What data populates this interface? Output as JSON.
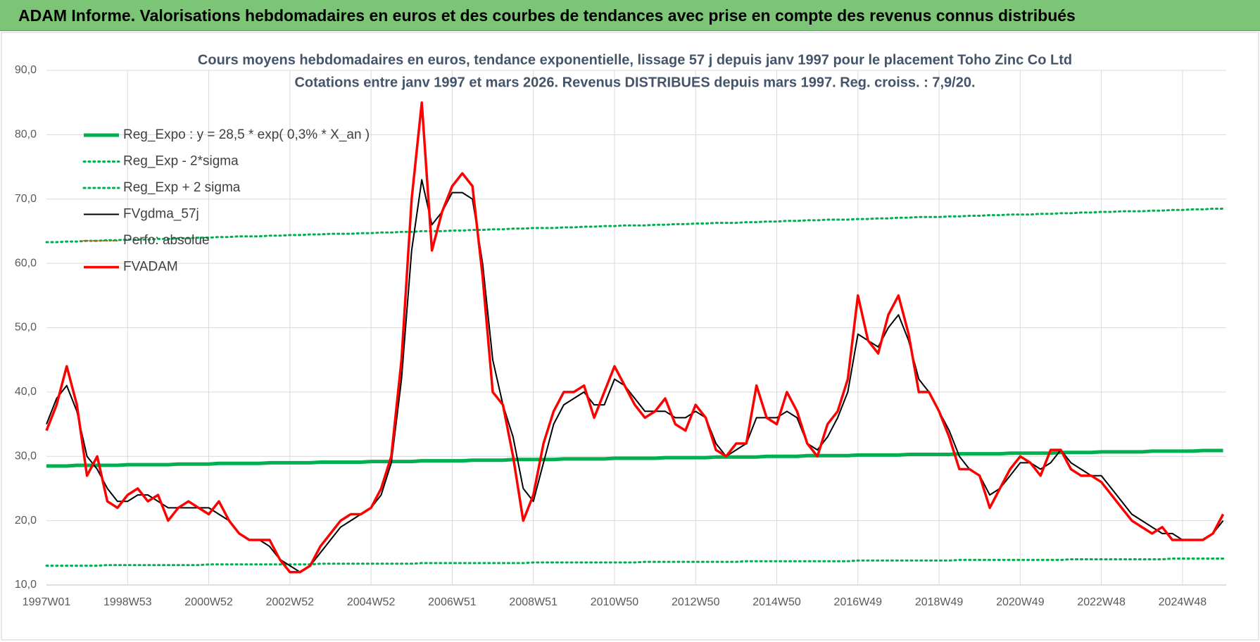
{
  "header": {
    "title": "ADAM Informe. Valorisations hebdomadaires en euros et des courbes de tendances avec prise en compte des revenus connus distribués"
  },
  "chart_data": {
    "type": "line",
    "title": "Cours moyens hebdomadaires en euros, tendance exponentielle, lissage 57 j depuis janv 1997 pour le placement Toho Zinc Co Ltd",
    "subtitle": "Cotations entre janv 1997 et mars 2026. Revenus DISTRIBUES depuis mars 1997. Reg. croiss. : 7,9/20.",
    "grid": true,
    "legend": "upper-left",
    "ylim": [
      10,
      90
    ],
    "yticks": [
      {
        "value": 10,
        "label": "10,0"
      },
      {
        "value": 20,
        "label": "20,0"
      },
      {
        "value": 30,
        "label": "30,0"
      },
      {
        "value": 40,
        "label": "40,0"
      },
      {
        "value": 50,
        "label": "50,0"
      },
      {
        "value": 60,
        "label": "60,0"
      },
      {
        "value": 70,
        "label": "70,0"
      },
      {
        "value": 80,
        "label": "80,0"
      },
      {
        "value": 90,
        "label": "90,0"
      }
    ],
    "categories": [
      "1997W01",
      null,
      null,
      null,
      null,
      null,
      null,
      null,
      "1998W53",
      null,
      null,
      null,
      null,
      null,
      null,
      null,
      "2000W52",
      null,
      null,
      null,
      null,
      null,
      null,
      null,
      "2002W52",
      null,
      null,
      null,
      null,
      null,
      null,
      null,
      "2004W52",
      null,
      null,
      null,
      null,
      null,
      null,
      null,
      "2006W51",
      null,
      null,
      null,
      null,
      null,
      null,
      null,
      "2008W51",
      null,
      null,
      null,
      null,
      null,
      null,
      null,
      "2010W50",
      null,
      null,
      null,
      null,
      null,
      null,
      null,
      "2012W50",
      null,
      null,
      null,
      null,
      null,
      null,
      null,
      "2014W50",
      null,
      null,
      null,
      null,
      null,
      null,
      null,
      "2016W49",
      null,
      null,
      null,
      null,
      null,
      null,
      null,
      "2018W49",
      null,
      null,
      null,
      null,
      null,
      null,
      null,
      "2020W49",
      null,
      null,
      null,
      null,
      null,
      null,
      null,
      "2022W48",
      null,
      null,
      null,
      null,
      null,
      null,
      null,
      "2024W48",
      null,
      null,
      null,
      null
    ],
    "series": [
      {
        "name": "Reg_Expo : y = 28,5 * exp( 0,3% *  X_an )",
        "color": "#00b050",
        "dash": "solid",
        "width": 5,
        "values": [
          28.5,
          28.5,
          28.5,
          28.6,
          28.6,
          28.6,
          28.6,
          28.6,
          28.7,
          28.7,
          28.7,
          28.7,
          28.7,
          28.8,
          28.8,
          28.8,
          28.8,
          28.9,
          28.9,
          28.9,
          28.9,
          28.9,
          29.0,
          29.0,
          29.0,
          29.0,
          29.0,
          29.1,
          29.1,
          29.1,
          29.1,
          29.1,
          29.2,
          29.2,
          29.2,
          29.2,
          29.2,
          29.3,
          29.3,
          29.3,
          29.3,
          29.3,
          29.4,
          29.4,
          29.4,
          29.4,
          29.5,
          29.5,
          29.5,
          29.5,
          29.5,
          29.6,
          29.6,
          29.6,
          29.6,
          29.6,
          29.7,
          29.7,
          29.7,
          29.7,
          29.7,
          29.8,
          29.8,
          29.8,
          29.8,
          29.8,
          29.9,
          29.9,
          29.9,
          29.9,
          29.9,
          30.0,
          30.0,
          30.0,
          30.0,
          30.1,
          30.1,
          30.1,
          30.1,
          30.1,
          30.2,
          30.2,
          30.2,
          30.2,
          30.2,
          30.3,
          30.3,
          30.3,
          30.3,
          30.3,
          30.4,
          30.4,
          30.4,
          30.4,
          30.4,
          30.5,
          30.5,
          30.5,
          30.5,
          30.5,
          30.6,
          30.6,
          30.6,
          30.6,
          30.7,
          30.7,
          30.7,
          30.7,
          30.7,
          30.8,
          30.8,
          30.8,
          30.8,
          30.8,
          30.9,
          30.9,
          30.9
        ]
      },
      {
        "name": "Reg_Exp - 2*sigma",
        "color": "#00b050",
        "dash": "dotted",
        "width": 3,
        "values": [
          13.0,
          13.0,
          13.0,
          13.0,
          13.0,
          13.0,
          13.1,
          13.1,
          13.1,
          13.1,
          13.1,
          13.1,
          13.1,
          13.1,
          13.1,
          13.1,
          13.2,
          13.2,
          13.2,
          13.2,
          13.2,
          13.2,
          13.2,
          13.2,
          13.2,
          13.2,
          13.2,
          13.3,
          13.3,
          13.3,
          13.3,
          13.3,
          13.3,
          13.3,
          13.3,
          13.3,
          13.3,
          13.4,
          13.4,
          13.4,
          13.4,
          13.4,
          13.4,
          13.4,
          13.4,
          13.4,
          13.4,
          13.4,
          13.5,
          13.5,
          13.5,
          13.5,
          13.5,
          13.5,
          13.5,
          13.5,
          13.5,
          13.5,
          13.5,
          13.6,
          13.6,
          13.6,
          13.6,
          13.6,
          13.6,
          13.6,
          13.6,
          13.6,
          13.6,
          13.7,
          13.7,
          13.7,
          13.7,
          13.7,
          13.7,
          13.7,
          13.7,
          13.7,
          13.7,
          13.7,
          13.8,
          13.8,
          13.8,
          13.8,
          13.8,
          13.8,
          13.8,
          13.8,
          13.8,
          13.8,
          13.9,
          13.9,
          13.9,
          13.9,
          13.9,
          13.9,
          13.9,
          13.9,
          13.9,
          13.9,
          13.9,
          14.0,
          14.0,
          14.0,
          14.0,
          14.0,
          14.0,
          14.0,
          14.0,
          14.0,
          14.0,
          14.1,
          14.1,
          14.1,
          14.1,
          14.1,
          14.1
        ]
      },
      {
        "name": "Reg_Exp + 2 sigma",
        "color": "#00b050",
        "dash": "dotted",
        "width": 3,
        "values": [
          63.3,
          63.3,
          63.4,
          63.4,
          63.5,
          63.5,
          63.6,
          63.6,
          63.7,
          63.7,
          63.7,
          63.8,
          63.8,
          63.9,
          63.9,
          64.0,
          64.0,
          64.1,
          64.1,
          64.2,
          64.2,
          64.2,
          64.3,
          64.3,
          64.4,
          64.4,
          64.5,
          64.5,
          64.6,
          64.6,
          64.6,
          64.7,
          64.7,
          64.8,
          64.8,
          64.9,
          64.9,
          65.0,
          65.0,
          65.0,
          65.1,
          65.1,
          65.2,
          65.2,
          65.3,
          65.3,
          65.4,
          65.4,
          65.5,
          65.5,
          65.5,
          65.6,
          65.6,
          65.7,
          65.7,
          65.8,
          65.8,
          65.9,
          65.9,
          65.9,
          66.0,
          66.0,
          66.1,
          66.1,
          66.2,
          66.2,
          66.3,
          66.3,
          66.3,
          66.4,
          66.4,
          66.5,
          66.5,
          66.6,
          66.6,
          66.7,
          66.7,
          66.8,
          66.8,
          66.8,
          66.9,
          66.9,
          67.0,
          67.0,
          67.1,
          67.1,
          67.2,
          67.2,
          67.2,
          67.3,
          67.3,
          67.4,
          67.4,
          67.5,
          67.5,
          67.6,
          67.6,
          67.6,
          67.7,
          67.7,
          67.8,
          67.8,
          67.9,
          67.9,
          68.0,
          68.0,
          68.1,
          68.1,
          68.1,
          68.2,
          68.2,
          68.3,
          68.3,
          68.4,
          68.4,
          68.5,
          68.5
        ]
      },
      {
        "name": "FVgdma_57j",
        "color": "#000000",
        "dash": "solid",
        "width": 2,
        "values": [
          35,
          39,
          41,
          37,
          30,
          28,
          25,
          23,
          23,
          24,
          24,
          23,
          22,
          22,
          22,
          22,
          22,
          21,
          20,
          18,
          17,
          17,
          16,
          14,
          13,
          12,
          13,
          15,
          17,
          19,
          20,
          21,
          22,
          24,
          29,
          42,
          62,
          73,
          66,
          68,
          71,
          71,
          70,
          60,
          45,
          38,
          33,
          25,
          23,
          29,
          35,
          38,
          39,
          40,
          38,
          38,
          42,
          41,
          39,
          37,
          37,
          37,
          36,
          36,
          37,
          36,
          32,
          30,
          31,
          32,
          36,
          36,
          36,
          37,
          36,
          32,
          31,
          33,
          36,
          40,
          49,
          48,
          47,
          50,
          52,
          48,
          42,
          40,
          37,
          34,
          30,
          28,
          27,
          24,
          25,
          27,
          29,
          29,
          28,
          29,
          31,
          29,
          28,
          27,
          27,
          25,
          23,
          21,
          20,
          19,
          18,
          18,
          17,
          17,
          17,
          18,
          20
        ]
      },
      {
        "name": "Perfo: absolue",
        "color": "#c55a11",
        "dash": "dotted",
        "width": 2,
        "values": [
          null,
          null,
          null,
          null,
          null,
          null,
          null,
          null,
          null,
          null,
          null,
          null,
          null,
          null,
          null,
          null,
          null,
          null,
          null,
          null,
          null,
          null,
          null,
          null,
          null,
          null,
          null,
          null,
          null,
          null,
          null,
          null,
          null,
          null,
          null,
          null,
          null,
          null,
          null,
          null,
          null,
          null,
          null,
          null,
          null,
          null,
          null,
          null,
          null,
          null,
          null,
          null,
          null,
          null,
          null,
          null,
          null,
          null,
          null,
          null,
          null,
          null,
          null,
          null,
          null,
          null,
          null,
          null,
          null,
          null,
          null,
          null,
          null,
          null,
          null,
          null,
          null,
          null,
          null,
          null,
          null,
          null,
          null,
          null,
          null,
          null,
          null,
          null,
          null,
          null,
          null,
          null,
          null,
          null,
          null,
          null,
          null,
          null,
          null,
          null,
          null,
          null,
          null,
          null,
          null,
          null,
          null,
          null,
          null,
          null,
          null,
          null,
          null,
          null,
          null,
          null,
          null
        ]
      },
      {
        "name": "FVADAM",
        "color": "#ff0000",
        "dash": "solid",
        "width": 3.5,
        "values": [
          34,
          38,
          44,
          38,
          27,
          30,
          23,
          22,
          24,
          25,
          23,
          24,
          20,
          22,
          23,
          22,
          21,
          23,
          20,
          18,
          17,
          17,
          17,
          14,
          12,
          12,
          13,
          16,
          18,
          20,
          21,
          21,
          22,
          25,
          30,
          45,
          70,
          85,
          62,
          68,
          72,
          74,
          72,
          58,
          40,
          38,
          30,
          20,
          24,
          32,
          37,
          40,
          40,
          41,
          36,
          40,
          44,
          41,
          38,
          36,
          37,
          39,
          35,
          34,
          38,
          36,
          31,
          30,
          32,
          32,
          41,
          36,
          35,
          40,
          37,
          32,
          30,
          35,
          37,
          42,
          55,
          48,
          46,
          52,
          55,
          49,
          40,
          40,
          37,
          33,
          28,
          28,
          27,
          22,
          25,
          28,
          30,
          29,
          27,
          31,
          31,
          28,
          27,
          27,
          26,
          24,
          22,
          20,
          19,
          18,
          19,
          17,
          17,
          17,
          17,
          18,
          21
        ]
      }
    ]
  }
}
